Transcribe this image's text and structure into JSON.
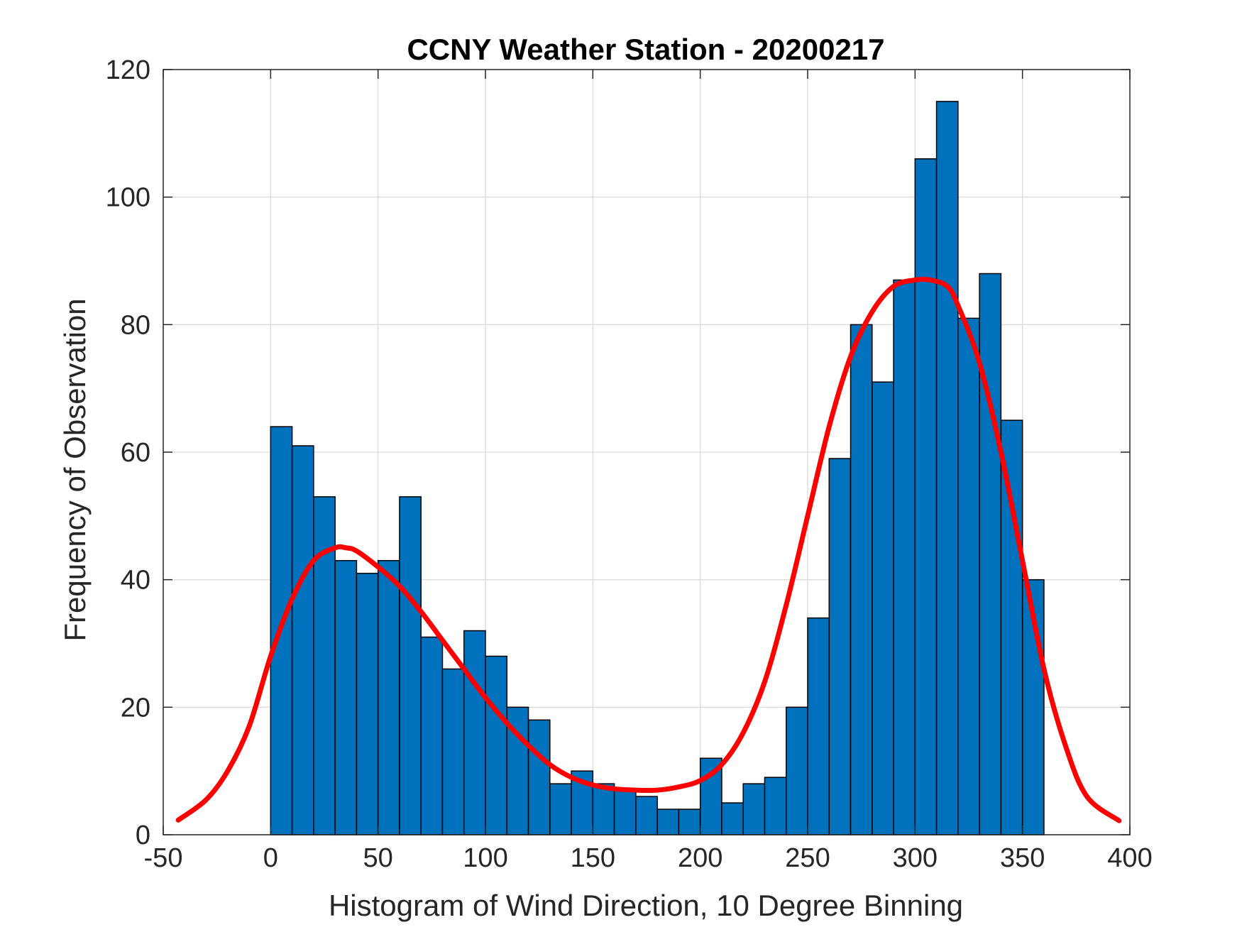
{
  "chart_data": {
    "type": "bar",
    "title": "CCNY Weather Station - 20200217",
    "xlabel": "Histogram of Wind Direction, 10 Degree Binning",
    "ylabel": "Frequency of Observation",
    "xlim": [
      -50,
      400
    ],
    "ylim": [
      0,
      120
    ],
    "grid": true,
    "legend": "none",
    "x_ticks": [
      -50,
      0,
      50,
      100,
      150,
      200,
      250,
      300,
      350,
      400
    ],
    "y_ticks": [
      0,
      20,
      40,
      60,
      80,
      100,
      120
    ],
    "bin_width": 10,
    "bin_edges_start": [
      0,
      10,
      20,
      30,
      40,
      50,
      60,
      70,
      80,
      90,
      100,
      110,
      120,
      130,
      140,
      150,
      160,
      170,
      180,
      190,
      200,
      210,
      220,
      230,
      240,
      250,
      260,
      270,
      280,
      290,
      300,
      310,
      320,
      330,
      340,
      350
    ],
    "counts": [
      64,
      61,
      53,
      43,
      41,
      43,
      53,
      31,
      26,
      32,
      28,
      20,
      18,
      8,
      10,
      8,
      7,
      6,
      4,
      4,
      12,
      5,
      8,
      9,
      20,
      34,
      59,
      80,
      71,
      87,
      106,
      115,
      81,
      88,
      65,
      40
    ],
    "bar_color": "#0072BD",
    "fit_curve": {
      "color": "#FF0000",
      "x": [
        -43,
        -30,
        -20,
        -10,
        0,
        10,
        20,
        30,
        35,
        40,
        50,
        60,
        70,
        80,
        90,
        100,
        110,
        120,
        130,
        140,
        150,
        160,
        170,
        180,
        190,
        200,
        210,
        220,
        230,
        240,
        250,
        260,
        270,
        280,
        290,
        300,
        307,
        315,
        320,
        330,
        340,
        350,
        360,
        370,
        380,
        395
      ],
      "y": [
        2.3,
        5.5,
        10,
        17,
        28,
        37,
        43,
        45,
        45,
        44.5,
        42,
        39,
        35,
        30.5,
        26,
        21.5,
        17.5,
        14,
        11,
        9,
        7.8,
        7.2,
        7,
        7,
        7.5,
        8.5,
        11,
        16,
        24,
        36,
        50,
        64,
        75,
        82,
        86,
        87,
        87,
        86,
        83,
        74,
        60,
        43,
        26,
        14,
        6,
        2.2
      ]
    }
  }
}
